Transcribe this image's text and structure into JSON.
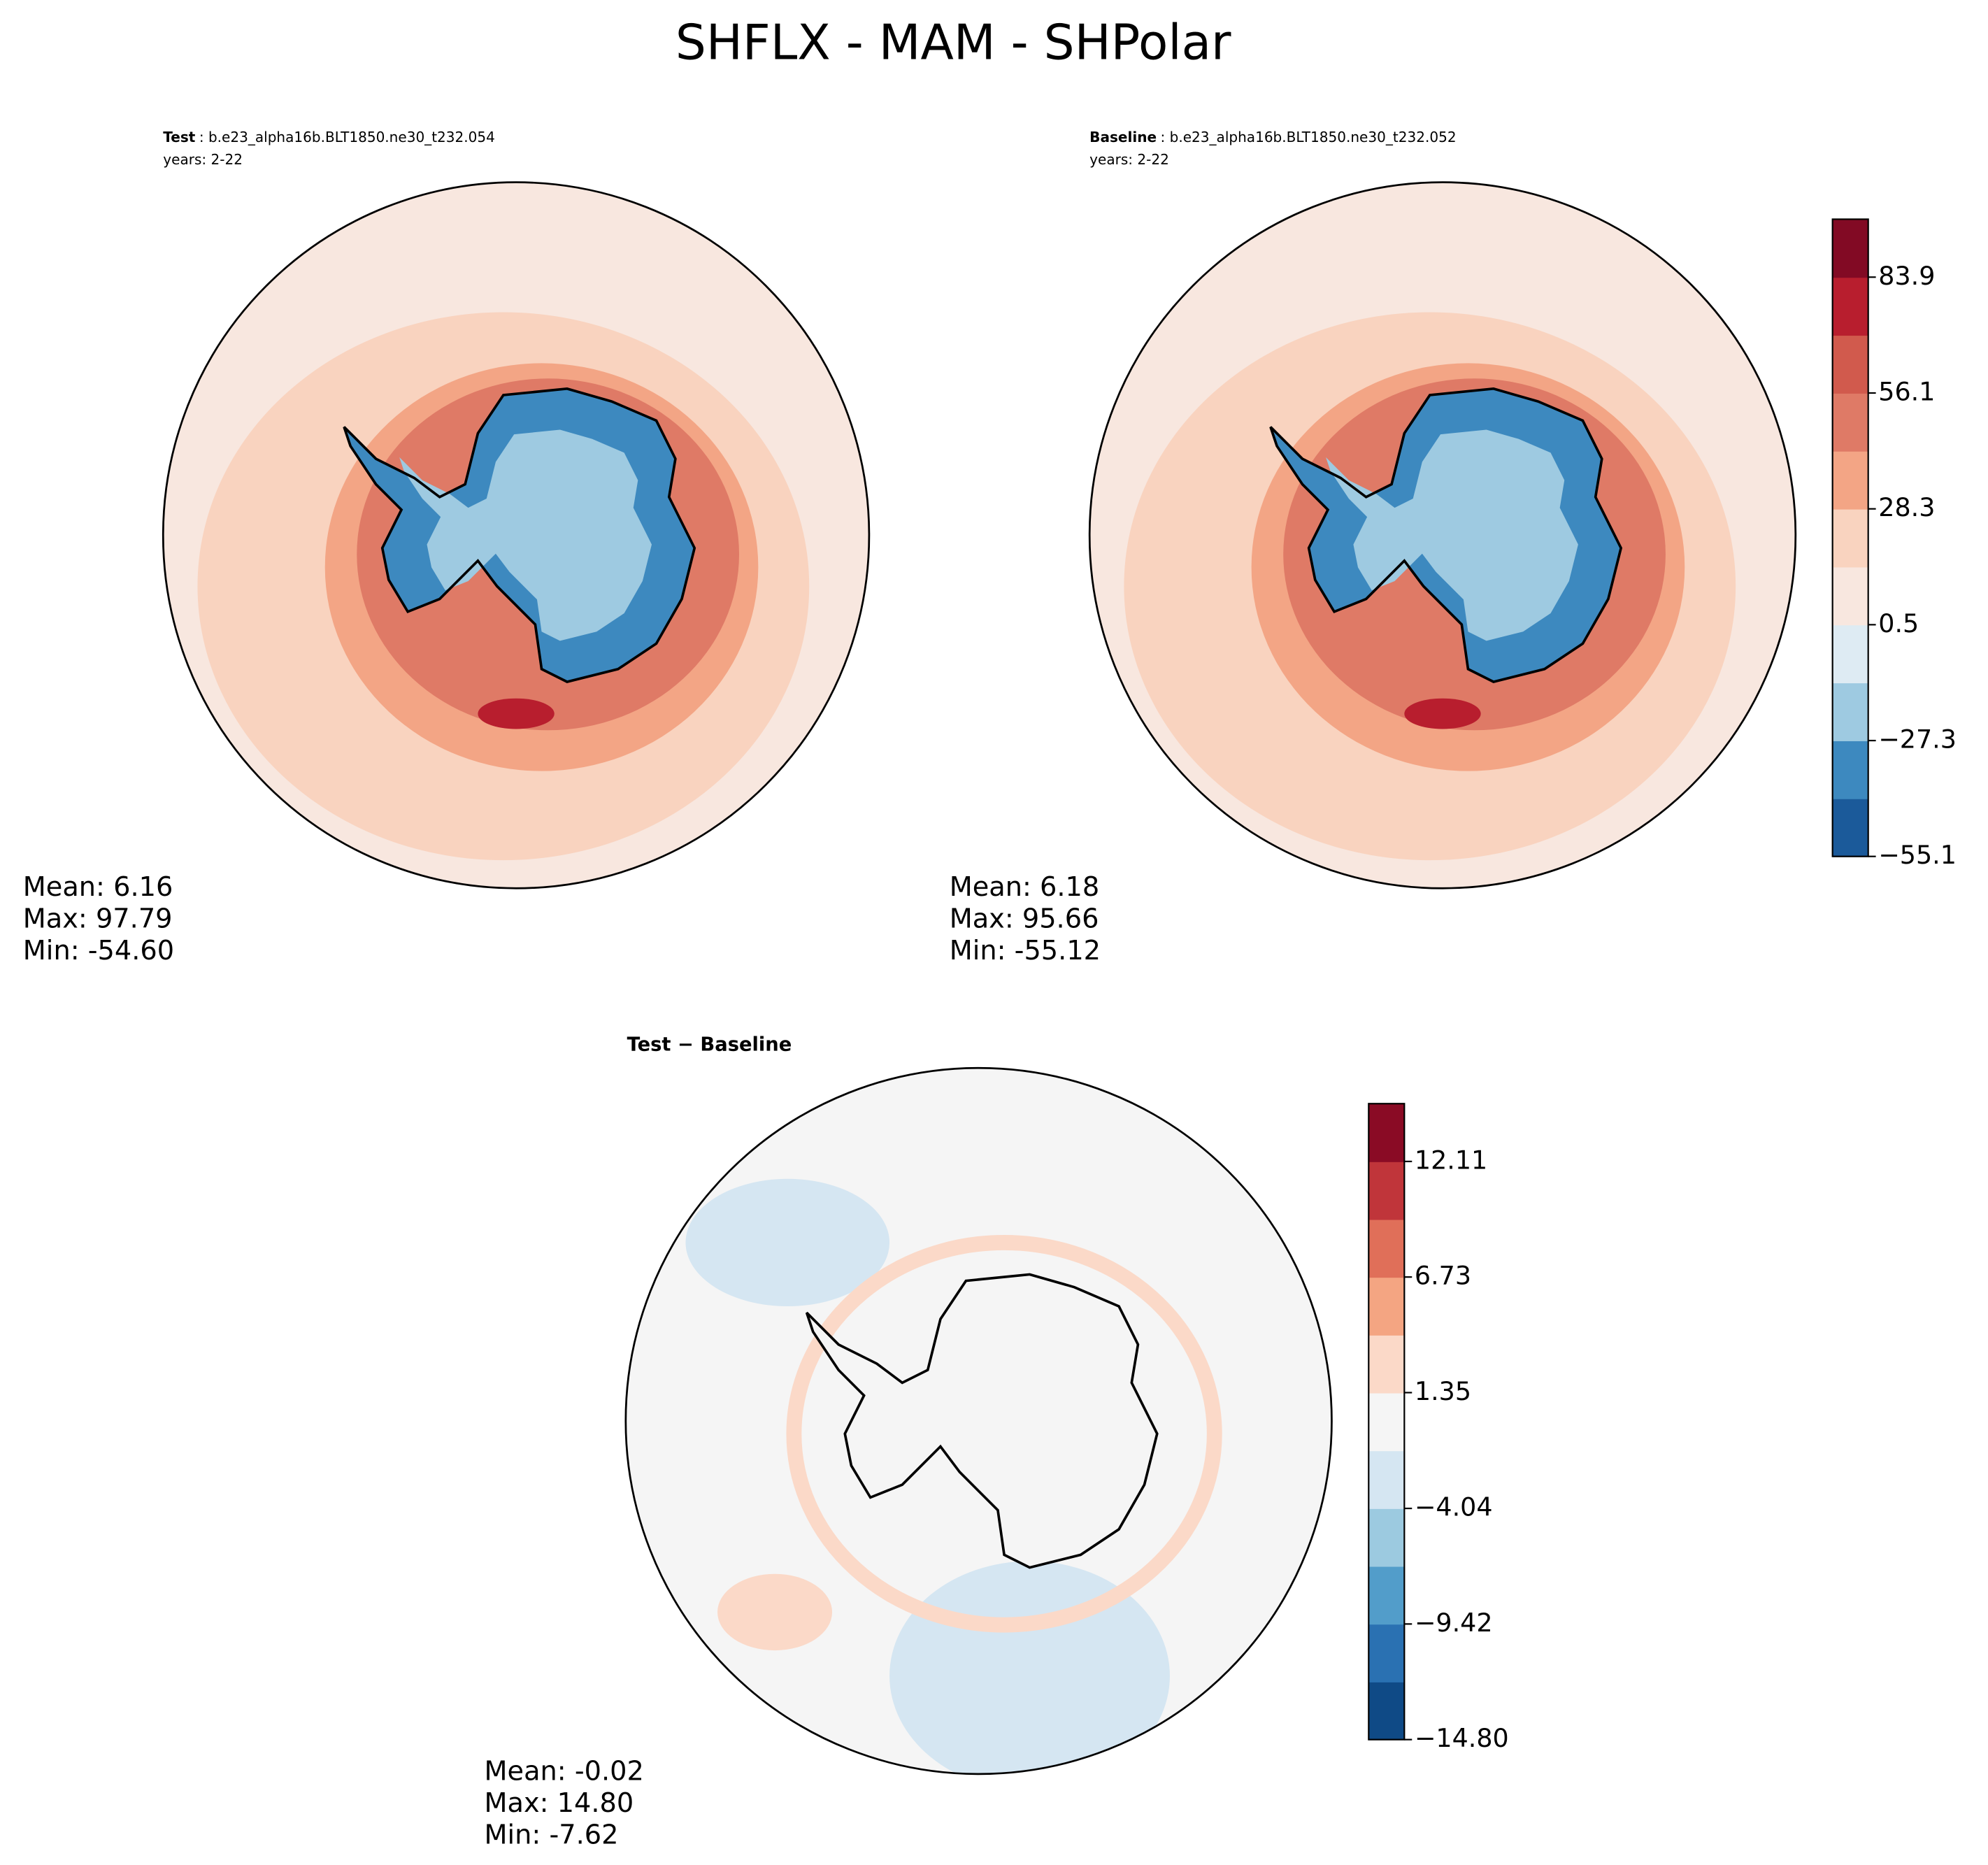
{
  "chart_data": {
    "title": "SHFLX - MAM - SHPolar",
    "panels": [
      {
        "type": "map",
        "title_bold": "Test",
        "title_rest": ": b.e23_alpha16b.BLT1850.ne30_t232.054",
        "years": "years: 2-22",
        "stats": [
          "Mean:  6.16",
          "Max: 97.79",
          "Min: -54.60"
        ]
      },
      {
        "type": "map",
        "title_bold": "Baseline",
        "title_rest": ": b.e23_alpha16b.BLT1850.ne30_t232.052",
        "years": "years: 2-22",
        "stats": [
          "Mean:  6.18",
          "Max: 95.66",
          "Min: -55.12"
        ],
        "clim": [
          -55.1,
          97.8
        ],
        "cticks": [
          {
            "value": -55.1,
            "label": "−55.1"
          },
          {
            "value": -27.3,
            "label": "−27.3"
          },
          0.5,
          28.3,
          56.1,
          83.9
        ],
        "colors": [
          "#1b5a9a",
          "#3d89bf",
          "#9ecae1",
          "#deebf3",
          "#f8e7df",
          "#f9d3bf",
          "#f3a585",
          "#df7a66",
          "#d15a4d",
          "#b81e2e",
          "#820a24"
        ]
      },
      {
        "type": "diffmap",
        "title_bold": "Test − Baseline",
        "stats": [
          "Mean: -0.02",
          "Max: 14.80",
          "Min: -7.62"
        ],
        "clim": [
          -14.8,
          14.8
        ],
        "cticks": [
          {
            "value": -14.8,
            "label": "−14.80"
          },
          {
            "value": -9.42,
            "label": "−9.42"
          },
          {
            "value": -4.04,
            "label": "−4.04"
          },
          1.35,
          6.73,
          12.11
        ],
        "colors": [
          "#0f4a86",
          "#2a71b2",
          "#529dca",
          "#9ccae0",
          "#d5e6f2",
          "#f5f5f5",
          "#fbd9c8",
          "#f4a582",
          "#e06f59",
          "#c0353a",
          "#8a0b25"
        ]
      }
    ]
  }
}
